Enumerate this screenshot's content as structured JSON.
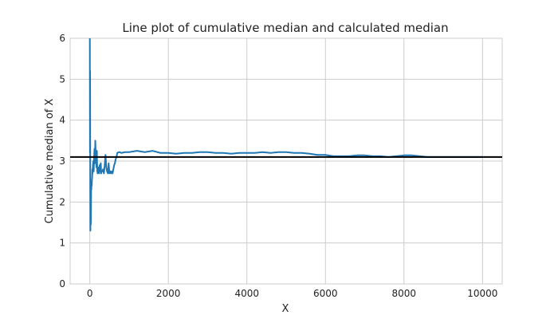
{
  "chart_data": {
    "type": "line",
    "title": "Line plot of cumulative median and calculated median",
    "xlabel": "X",
    "ylabel": "Cumulative median of X",
    "xlim": [
      -500,
      10500
    ],
    "ylim": [
      0,
      6
    ],
    "xticks": [
      0,
      2000,
      4000,
      6000,
      8000,
      10000
    ],
    "yticks": [
      0,
      1,
      2,
      3,
      4,
      5,
      6
    ],
    "grid": true,
    "legend": "none",
    "colors": {
      "series": "#1f77b4",
      "reference": "#000000"
    },
    "series": [
      {
        "x": [
          1,
          3,
          5,
          8,
          12,
          15,
          20,
          25,
          30,
          35,
          40,
          45,
          50,
          55,
          60,
          65,
          70,
          80,
          90,
          100,
          110,
          120,
          130,
          140,
          150,
          160,
          170,
          180,
          190,
          200,
          210,
          220,
          230,
          240,
          250,
          260,
          270,
          280,
          290,
          300,
          320,
          340,
          360,
          380,
          400,
          420,
          440,
          460,
          480,
          500,
          520,
          540,
          560,
          580,
          600,
          620,
          640,
          660,
          680,
          700,
          750,
          800,
          900,
          1000,
          1200,
          1400,
          1600,
          1800,
          2000,
          2200,
          2400,
          2600,
          2800,
          3000,
          3200,
          3400,
          3600,
          3800,
          4000,
          4200,
          4400,
          4600,
          4800,
          5000,
          5200,
          5400,
          5600,
          5800,
          6000,
          6200,
          6400,
          6600,
          6800,
          7000,
          7200,
          7400,
          7600,
          7800,
          8000,
          8200,
          8400,
          8600,
          8800,
          9000,
          9200,
          9400,
          9600,
          9800,
          10000
        ],
        "y": [
          6.0,
          4.8,
          3.2,
          5.2,
          2.4,
          1.3,
          1.8,
          1.45,
          1.65,
          2.5,
          2.3,
          2.45,
          2.4,
          2.55,
          2.6,
          2.8,
          2.7,
          2.9,
          3.0,
          2.75,
          3.1,
          3.3,
          2.95,
          3.5,
          3.2,
          3.0,
          2.85,
          3.25,
          2.75,
          2.7,
          2.8,
          2.75,
          2.85,
          2.7,
          2.9,
          2.75,
          2.85,
          2.95,
          2.7,
          2.75,
          2.75,
          2.8,
          2.7,
          2.9,
          3.15,
          2.85,
          2.75,
          2.7,
          2.95,
          2.7,
          2.75,
          2.7,
          2.75,
          2.7,
          2.8,
          2.9,
          2.95,
          3.05,
          3.1,
          3.2,
          3.22,
          3.2,
          3.22,
          3.22,
          3.25,
          3.22,
          3.25,
          3.2,
          3.2,
          3.18,
          3.2,
          3.2,
          3.22,
          3.22,
          3.2,
          3.2,
          3.18,
          3.2,
          3.2,
          3.2,
          3.22,
          3.2,
          3.22,
          3.22,
          3.2,
          3.2,
          3.18,
          3.15,
          3.15,
          3.12,
          3.12,
          3.12,
          3.14,
          3.14,
          3.12,
          3.12,
          3.1,
          3.12,
          3.14,
          3.14,
          3.12,
          3.1,
          3.1,
          3.1,
          3.1,
          3.1,
          3.1,
          3.1,
          3.1
        ]
      }
    ],
    "reference_line": {
      "y": 3.1
    }
  }
}
